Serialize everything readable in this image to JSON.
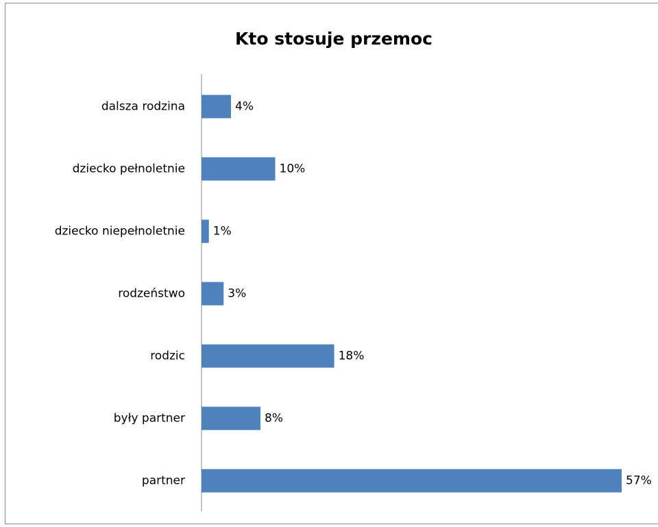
{
  "chart_data": {
    "type": "hbar",
    "title": "Kto stosuje przemoc",
    "categories": [
      "dalsza rodzina",
      "dziecko pełnoletnie",
      "dziecko niepełnoletnie",
      "rodzeństwo",
      "rodzic",
      "były partner",
      "partner"
    ],
    "values": [
      4,
      10,
      1,
      3,
      18,
      8,
      57
    ],
    "value_labels": [
      "4%",
      "10%",
      "1%",
      "3%",
      "18%",
      "8%",
      "57%"
    ],
    "color": "#4f81bd"
  }
}
